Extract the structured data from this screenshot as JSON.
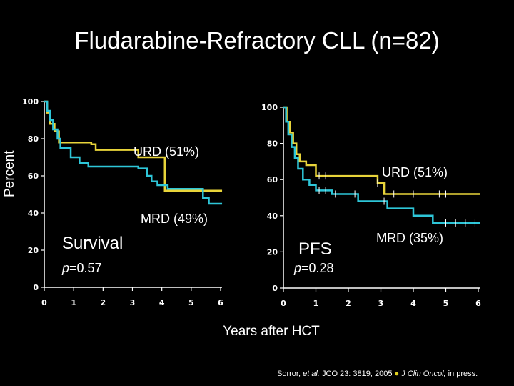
{
  "title": "Fludarabine-Refractory CLL (n=82)",
  "y_axis_label": "Percent",
  "x_axis_title": "Years after HCT",
  "citation": {
    "part1": "Sorror, ",
    "etal": "et al.",
    "part2": "  JCO 23: 3819, 2005 ",
    "bullet": "●",
    "journal": " J Clin Oncol,",
    "part3": " in press."
  },
  "colors": {
    "urd": "#e8d43a",
    "mrd": "#2ec6d8",
    "axis": "#ffffff",
    "background": "#000000"
  },
  "chart_data": [
    {
      "type": "line",
      "panel_label": "Survival",
      "p_prefix": "p",
      "p_suffix": "=0.57",
      "urd_label": "URD (51%)",
      "mrd_label": "MRD (49%)",
      "xlim": [
        0,
        6
      ],
      "ylim": [
        0,
        100
      ],
      "x_ticks": [
        "0",
        "1",
        "2",
        "3",
        "4",
        "5",
        "6"
      ],
      "y_ticks": [
        "0",
        "20",
        "40",
        "60",
        "80",
        "100"
      ],
      "series": [
        {
          "name": "URD",
          "x": [
            0,
            0.1,
            0.2,
            0.35,
            0.5,
            1.6,
            1.75,
            3.2,
            4.1,
            6.05
          ],
          "y": [
            100,
            94,
            88,
            84,
            78,
            77,
            74,
            70,
            52,
            52
          ]
        },
        {
          "name": "MRD",
          "x": [
            0,
            0.1,
            0.2,
            0.3,
            0.45,
            0.55,
            0.9,
            1.2,
            1.5,
            2.9,
            3.2,
            3.5,
            3.65,
            3.85,
            4.2,
            5.4,
            5.6,
            6.05
          ],
          "y": [
            100,
            95,
            90,
            85,
            80,
            75,
            70,
            67,
            65,
            65,
            64,
            60,
            57,
            55,
            53,
            48,
            45,
            45
          ]
        }
      ]
    },
    {
      "type": "line",
      "panel_label": "PFS",
      "p_prefix": "p",
      "p_suffix": "=0.28",
      "urd_label": "URD (51%)",
      "mrd_label": "MRD (35%)",
      "xlim": [
        0,
        6
      ],
      "ylim": [
        0,
        100
      ],
      "x_ticks": [
        "0",
        "1",
        "2",
        "3",
        "4",
        "5",
        "6"
      ],
      "y_ticks": [
        "0",
        "20",
        "40",
        "60",
        "80",
        "100"
      ],
      "series": [
        {
          "name": "URD",
          "x": [
            0,
            0.1,
            0.2,
            0.3,
            0.4,
            0.5,
            0.7,
            1.0,
            2.7,
            2.9,
            3.1,
            6.05
          ],
          "y": [
            100,
            92,
            86,
            80,
            74,
            70,
            68,
            62,
            62,
            58,
            52,
            52
          ]
        },
        {
          "name": "MRD",
          "x": [
            0,
            0.08,
            0.15,
            0.25,
            0.35,
            0.45,
            0.6,
            0.8,
            1.0,
            1.5,
            2.3,
            3.2,
            4.0,
            4.6,
            4.8,
            6.05
          ],
          "y": [
            100,
            92,
            85,
            78,
            72,
            66,
            60,
            57,
            54,
            52,
            48,
            44,
            40,
            36,
            36,
            36
          ]
        }
      ],
      "censor_urd_x": [
        1.0,
        1.1,
        1.3,
        2.9,
        3.0,
        3.4,
        4.0,
        4.8,
        5.0
      ],
      "censor_mrd_x": [
        1.1,
        1.3,
        1.6,
        2.2,
        3.1,
        5.0,
        5.3,
        5.6,
        5.9
      ]
    }
  ]
}
